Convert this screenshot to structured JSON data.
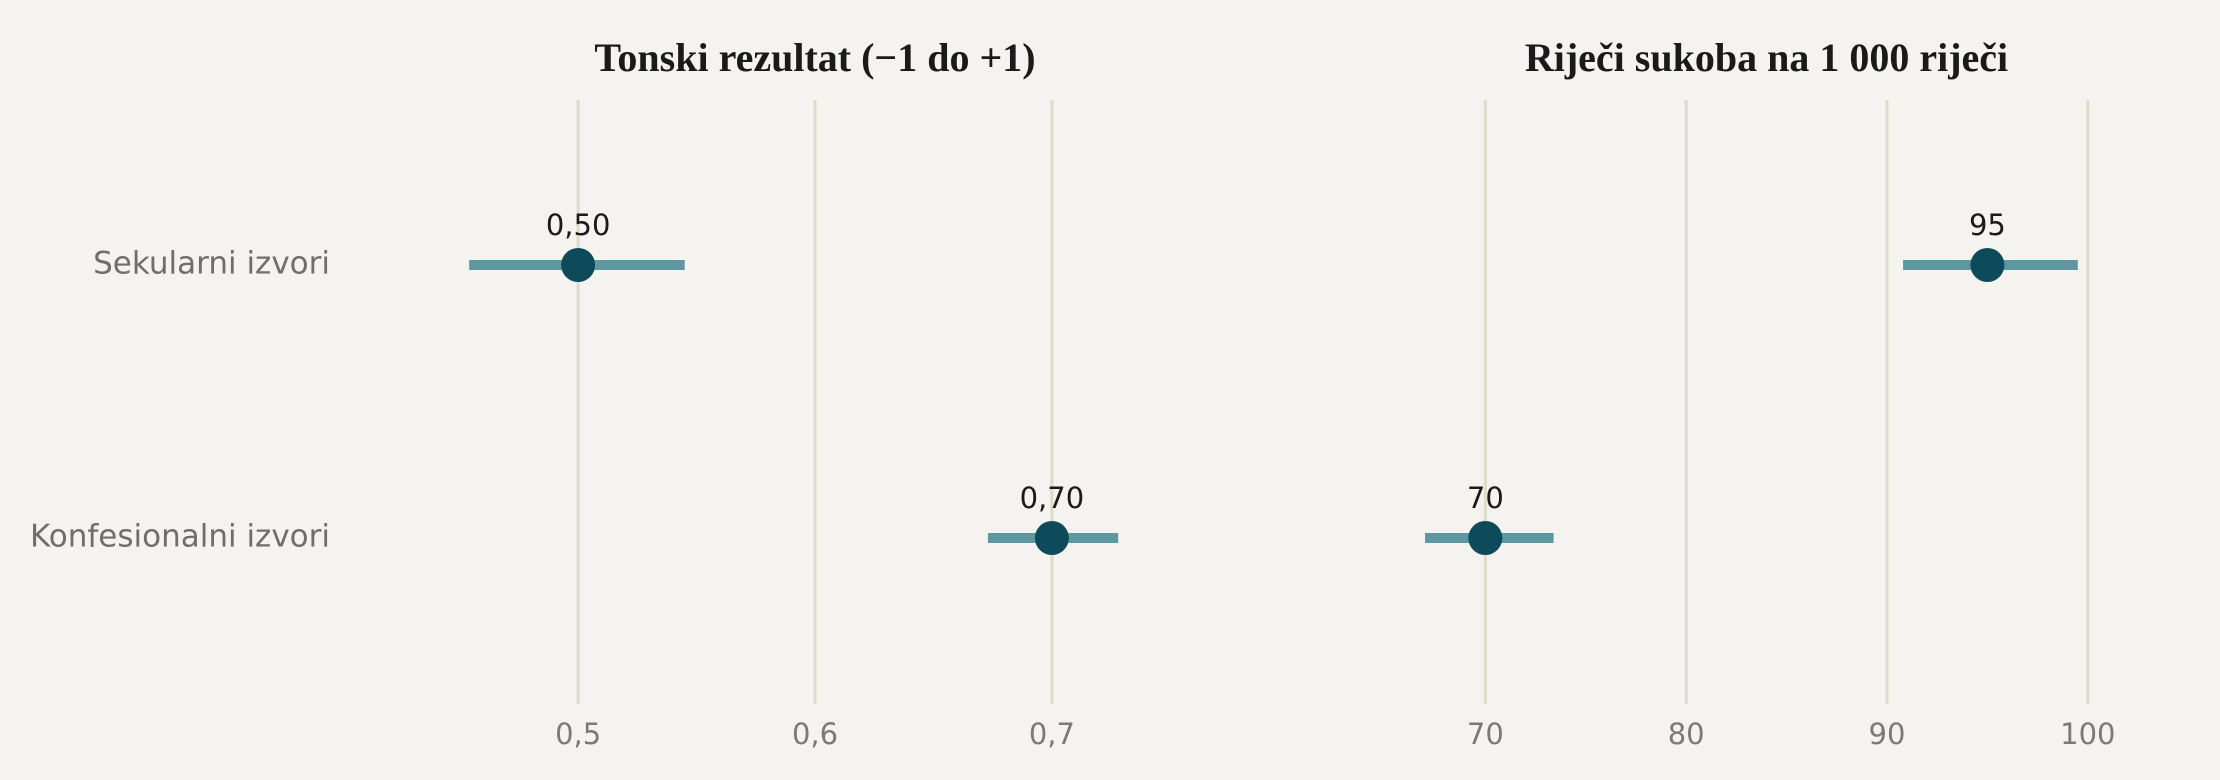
{
  "chart_data": [
    {
      "type": "dot",
      "title": "Tonski rezultat (−1 do +1)",
      "categories": [
        "Sekularni izvori",
        "Konfesionalni izvori"
      ],
      "series": [
        {
          "values": [
            0.5,
            0.7
          ],
          "value_labels": [
            "0,50",
            "0,70"
          ],
          "lower": [
            0.454,
            0.673
          ],
          "upper": [
            0.545,
            0.728
          ],
          "color": "#0d4a5a",
          "bar_color": "#5f97a1"
        }
      ],
      "xlim": [
        0.44,
        0.76
      ],
      "xticks": [
        {
          "value": 0.5,
          "label": "0,5"
        },
        {
          "value": 0.6,
          "label": "0,6"
        },
        {
          "value": 0.7,
          "label": "0,7"
        }
      ],
      "grid": true
    },
    {
      "type": "dot",
      "title": "Riječi sukoba na 1 000 riječi",
      "series": [
        {
          "values": [
            95,
            70
          ],
          "lower": [
            90.8,
            67.0
          ],
          "upper": [
            99.5,
            73.4
          ],
          "color": "#0d4a5a",
          "bar_color": "#5f97a1"
        }
      ],
      "xlim": [
        66,
        102
      ],
      "xticks": [
        70,
        80,
        90,
        100
      ],
      "grid": true
    }
  ]
}
